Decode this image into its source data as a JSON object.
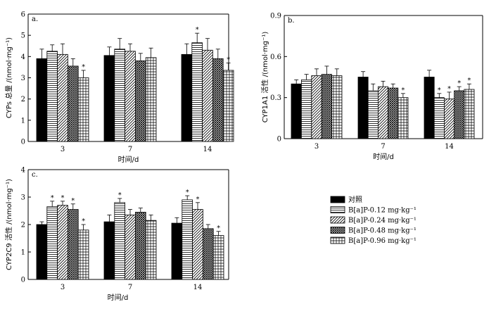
{
  "series_names": [
    "对照",
    "B[a]P-0.12 mg·kg⁻¹",
    "B[a]P-0.24 mg·kg⁻¹",
    "B[a]P-0.48 mg·kg⁻¹",
    "B[a]P-0.96 mg·kg⁻¹"
  ],
  "chart_data": [
    {
      "type": "bar",
      "panel": "a.",
      "ylabel": "CYPs 总量 /(nmol·mg⁻¹)",
      "xlabel": "时间/d",
      "categories": [
        "3",
        "7",
        "14"
      ],
      "ylim": [
        0,
        6
      ],
      "yticks": [
        "0",
        "1",
        "2",
        "3",
        "4",
        "5",
        "6"
      ],
      "series": [
        {
          "name": "对照",
          "values": [
            3.9,
            4.05,
            4.1
          ],
          "errors": [
            0.45,
            0.4,
            0.5
          ],
          "sig": [
            false,
            false,
            false
          ]
        },
        {
          "name": "B[a]P-0.12 mg·kg⁻¹",
          "values": [
            4.25,
            4.35,
            4.65
          ],
          "errors": [
            0.3,
            0.5,
            0.45
          ],
          "sig": [
            false,
            false,
            true
          ]
        },
        {
          "name": "B[a]P-0.24 mg·kg⁻¹",
          "values": [
            4.1,
            4.25,
            4.3
          ],
          "errors": [
            0.5,
            0.35,
            0.55
          ],
          "sig": [
            false,
            false,
            false
          ]
        },
        {
          "name": "B[a]P-0.48 mg·kg⁻¹",
          "values": [
            3.55,
            3.8,
            3.9
          ],
          "errors": [
            0.35,
            0.35,
            0.45
          ],
          "sig": [
            false,
            false,
            false
          ]
        },
        {
          "name": "B[a]P-0.96 mg·kg⁻¹",
          "values": [
            3.0,
            3.95,
            3.35
          ],
          "errors": [
            0.35,
            0.45,
            0.35
          ],
          "sig": [
            true,
            false,
            true
          ]
        }
      ]
    },
    {
      "type": "bar",
      "panel": "b.",
      "ylabel": "CYP1A1 活性 /(nmol·mg⁻¹)",
      "xlabel": "时间/d",
      "categories": [
        "3",
        "7",
        "14"
      ],
      "ylim": [
        0,
        0.9
      ],
      "yticks": [
        "0",
        "0.3",
        "0.6",
        "0.9"
      ],
      "series": [
        {
          "name": "对照",
          "values": [
            0.4,
            0.45,
            0.45
          ],
          "errors": [
            0.03,
            0.04,
            0.05
          ],
          "sig": [
            false,
            false,
            false
          ]
        },
        {
          "name": "B[a]P-0.12 mg·kg⁻¹",
          "values": [
            0.43,
            0.35,
            0.3
          ],
          "errors": [
            0.04,
            0.05,
            0.03
          ],
          "sig": [
            false,
            false,
            true
          ]
        },
        {
          "name": "B[a]P-0.24 mg·kg⁻¹",
          "values": [
            0.46,
            0.38,
            0.29
          ],
          "errors": [
            0.05,
            0.04,
            0.05
          ],
          "sig": [
            false,
            false,
            true
          ]
        },
        {
          "name": "B[a]P-0.48 mg·kg⁻¹",
          "values": [
            0.47,
            0.37,
            0.35
          ],
          "errors": [
            0.06,
            0.03,
            0.03
          ],
          "sig": [
            false,
            false,
            true
          ]
        },
        {
          "name": "B[a]P-0.96 mg·kg⁻¹",
          "values": [
            0.46,
            0.3,
            0.36
          ],
          "errors": [
            0.05,
            0.03,
            0.04
          ],
          "sig": [
            false,
            true,
            true
          ]
        }
      ]
    },
    {
      "type": "bar",
      "panel": "c.",
      "ylabel": "CYP2C9 活性 /(nmol·mg⁻¹)",
      "xlabel": "时间/d",
      "categories": [
        "3",
        "7",
        "14"
      ],
      "ylim": [
        0,
        4
      ],
      "yticks": [
        "0",
        "1",
        "2",
        "3",
        "4"
      ],
      "series": [
        {
          "name": "对照",
          "values": [
            2.0,
            2.1,
            2.05
          ],
          "errors": [
            0.1,
            0.25,
            0.2
          ],
          "sig": [
            false,
            false,
            false
          ]
        },
        {
          "name": "B[a]P-0.12 mg·kg⁻¹",
          "values": [
            2.65,
            2.8,
            2.9
          ],
          "errors": [
            0.2,
            0.15,
            0.15
          ],
          "sig": [
            true,
            true,
            true
          ]
        },
        {
          "name": "B[a]P-0.24 mg·kg⁻¹",
          "values": [
            2.7,
            2.35,
            2.55
          ],
          "errors": [
            0.15,
            0.2,
            0.25
          ],
          "sig": [
            true,
            false,
            true
          ]
        },
        {
          "name": "B[a]P-0.48 mg·kg⁻¹",
          "values": [
            2.55,
            2.45,
            1.85
          ],
          "errors": [
            0.2,
            0.15,
            0.15
          ],
          "sig": [
            true,
            false,
            false
          ]
        },
        {
          "name": "B[a]P-0.96 mg·kg⁻¹",
          "values": [
            1.8,
            2.15,
            1.6
          ],
          "errors": [
            0.2,
            0.2,
            0.15
          ],
          "sig": [
            true,
            false,
            true
          ]
        }
      ]
    }
  ]
}
